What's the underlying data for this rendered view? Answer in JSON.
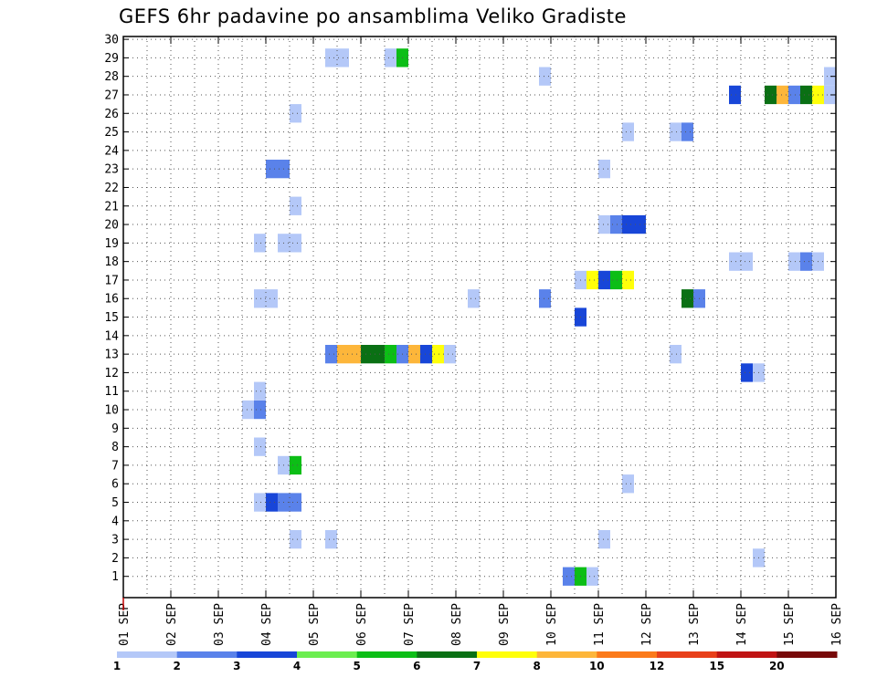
{
  "chart_data": {
    "type": "heatmap",
    "title": "GEFS 6hr padavine po ansamblima Veliko Gradiste",
    "x_tick_labels": [
      "01 SEP",
      "02 SEP",
      "03 SEP",
      "04 SEP",
      "05 SEP",
      "06 SEP",
      "07 SEP",
      "08 SEP",
      "09 SEP",
      "10 SEP",
      "11 SEP",
      "12 SEP",
      "13 SEP",
      "14 SEP",
      "15 SEP",
      "16 SEP"
    ],
    "y_tick_labels": [
      "1",
      "2",
      "3",
      "4",
      "5",
      "6",
      "7",
      "8",
      "9",
      "10",
      "11",
      "12",
      "13",
      "14",
      "15",
      "16",
      "17",
      "18",
      "19",
      "20",
      "21",
      "22",
      "23",
      "24",
      "25",
      "26",
      "27",
      "28",
      "29",
      "30"
    ],
    "xlim_days": [
      1,
      16
    ],
    "ylim": [
      0,
      30
    ],
    "grid": true,
    "colorbar": {
      "boundary_labels": [
        "1",
        "2",
        "3",
        "4",
        "5",
        "6",
        "7",
        "8",
        "10",
        "12",
        "15",
        "20"
      ],
      "colors": [
        "#b4c8f8",
        "#5a82ea",
        "#1846d8",
        "#6cee50",
        "#0cbe16",
        "#0a7014",
        "#ffff0a",
        "#fdb63a",
        "#fb7a1a",
        "#e8401a",
        "#c01414",
        "#780a0a"
      ]
    },
    "bins_per_day": 4,
    "cells": [
      {
        "member": 1,
        "day": 10,
        "bin": 1,
        "v": 2
      },
      {
        "member": 1,
        "day": 10,
        "bin": 2,
        "v": 5
      },
      {
        "member": 1,
        "day": 10,
        "bin": 3,
        "v": 1
      },
      {
        "member": 2,
        "day": 14,
        "bin": 1,
        "v": 1
      },
      {
        "member": 3,
        "day": 4,
        "bin": 2,
        "v": 1
      },
      {
        "member": 3,
        "day": 5,
        "bin": 1,
        "v": 1
      },
      {
        "member": 3,
        "day": 11,
        "bin": 0,
        "v": 1
      },
      {
        "member": 5,
        "day": 3,
        "bin": 3,
        "v": 1
      },
      {
        "member": 5,
        "day": 4,
        "bin": 0,
        "v": 3
      },
      {
        "member": 5,
        "day": 4,
        "bin": 1,
        "v": 2
      },
      {
        "member": 5,
        "day": 4,
        "bin": 2,
        "v": 2
      },
      {
        "member": 6,
        "day": 11,
        "bin": 2,
        "v": 1
      },
      {
        "member": 7,
        "day": 4,
        "bin": 1,
        "v": 1
      },
      {
        "member": 7,
        "day": 4,
        "bin": 2,
        "v": 5
      },
      {
        "member": 8,
        "day": 3,
        "bin": 3,
        "v": 1
      },
      {
        "member": 10,
        "day": 3,
        "bin": 2,
        "v": 1
      },
      {
        "member": 10,
        "day": 3,
        "bin": 3,
        "v": 2
      },
      {
        "member": 11,
        "day": 3,
        "bin": 3,
        "v": 1
      },
      {
        "member": 12,
        "day": 14,
        "bin": 0,
        "v": 3
      },
      {
        "member": 12,
        "day": 14,
        "bin": 1,
        "v": 1
      },
      {
        "member": 13,
        "day": 5,
        "bin": 1,
        "v": 2
      },
      {
        "member": 13,
        "day": 5,
        "bin": 2,
        "v": 8
      },
      {
        "member": 13,
        "day": 5,
        "bin": 3,
        "v": 8
      },
      {
        "member": 13,
        "day": 6,
        "bin": 0,
        "v": 6
      },
      {
        "member": 13,
        "day": 6,
        "bin": 1,
        "v": 6
      },
      {
        "member": 13,
        "day": 6,
        "bin": 2,
        "v": 5
      },
      {
        "member": 13,
        "day": 6,
        "bin": 3,
        "v": 2
      },
      {
        "member": 13,
        "day": 7,
        "bin": 0,
        "v": 8
      },
      {
        "member": 13,
        "day": 7,
        "bin": 1,
        "v": 3
      },
      {
        "member": 13,
        "day": 7,
        "bin": 2,
        "v": 7
      },
      {
        "member": 13,
        "day": 7,
        "bin": 3,
        "v": 1
      },
      {
        "member": 13,
        "day": 12,
        "bin": 2,
        "v": 1
      },
      {
        "member": 15,
        "day": 10,
        "bin": 2,
        "v": 3
      },
      {
        "member": 16,
        "day": 3,
        "bin": 3,
        "v": 1
      },
      {
        "member": 16,
        "day": 4,
        "bin": 0,
        "v": 1
      },
      {
        "member": 16,
        "day": 8,
        "bin": 1,
        "v": 1
      },
      {
        "member": 16,
        "day": 9,
        "bin": 3,
        "v": 2
      },
      {
        "member": 16,
        "day": 12,
        "bin": 3,
        "v": 6
      },
      {
        "member": 16,
        "day": 13,
        "bin": 0,
        "v": 2
      },
      {
        "member": 17,
        "day": 10,
        "bin": 2,
        "v": 1
      },
      {
        "member": 17,
        "day": 10,
        "bin": 3,
        "v": 7
      },
      {
        "member": 17,
        "day": 11,
        "bin": 0,
        "v": 3
      },
      {
        "member": 17,
        "day": 11,
        "bin": 1,
        "v": 5
      },
      {
        "member": 17,
        "day": 11,
        "bin": 2,
        "v": 7
      },
      {
        "member": 18,
        "day": 13,
        "bin": 3,
        "v": 1
      },
      {
        "member": 18,
        "day": 14,
        "bin": 0,
        "v": 1
      },
      {
        "member": 18,
        "day": 15,
        "bin": 0,
        "v": 1
      },
      {
        "member": 18,
        "day": 15,
        "bin": 1,
        "v": 2
      },
      {
        "member": 18,
        "day": 15,
        "bin": 2,
        "v": 1
      },
      {
        "member": 19,
        "day": 3,
        "bin": 3,
        "v": 1
      },
      {
        "member": 19,
        "day": 4,
        "bin": 1,
        "v": 1
      },
      {
        "member": 19,
        "day": 4,
        "bin": 2,
        "v": 1
      },
      {
        "member": 20,
        "day": 11,
        "bin": 0,
        "v": 1
      },
      {
        "member": 20,
        "day": 11,
        "bin": 1,
        "v": 2
      },
      {
        "member": 20,
        "day": 11,
        "bin": 2,
        "v": 3
      },
      {
        "member": 20,
        "day": 11,
        "bin": 3,
        "v": 3
      },
      {
        "member": 21,
        "day": 4,
        "bin": 2,
        "v": 1
      },
      {
        "member": 23,
        "day": 4,
        "bin": 0,
        "v": 2
      },
      {
        "member": 23,
        "day": 4,
        "bin": 1,
        "v": 2
      },
      {
        "member": 23,
        "day": 11,
        "bin": 0,
        "v": 1
      },
      {
        "member": 25,
        "day": 11,
        "bin": 2,
        "v": 1
      },
      {
        "member": 25,
        "day": 12,
        "bin": 2,
        "v": 1
      },
      {
        "member": 25,
        "day": 12,
        "bin": 3,
        "v": 2
      },
      {
        "member": 26,
        "day": 4,
        "bin": 2,
        "v": 1
      },
      {
        "member": 27,
        "day": 13,
        "bin": 3,
        "v": 3
      },
      {
        "member": 27,
        "day": 14,
        "bin": 2,
        "v": 6
      },
      {
        "member": 27,
        "day": 14,
        "bin": 3,
        "v": 8
      },
      {
        "member": 27,
        "day": 15,
        "bin": 0,
        "v": 2
      },
      {
        "member": 27,
        "day": 15,
        "bin": 1,
        "v": 6
      },
      {
        "member": 27,
        "day": 15,
        "bin": 2,
        "v": 7
      },
      {
        "member": 27,
        "day": 15,
        "bin": 3,
        "v": 1
      },
      {
        "member": 28,
        "day": 9,
        "bin": 3,
        "v": 1
      },
      {
        "member": 28,
        "day": 15,
        "bin": 3,
        "v": 1
      },
      {
        "member": 29,
        "day": 5,
        "bin": 1,
        "v": 1
      },
      {
        "member": 29,
        "day": 5,
        "bin": 2,
        "v": 1
      },
      {
        "member": 29,
        "day": 6,
        "bin": 2,
        "v": 1
      },
      {
        "member": 29,
        "day": 6,
        "bin": 3,
        "v": 5
      }
    ]
  }
}
